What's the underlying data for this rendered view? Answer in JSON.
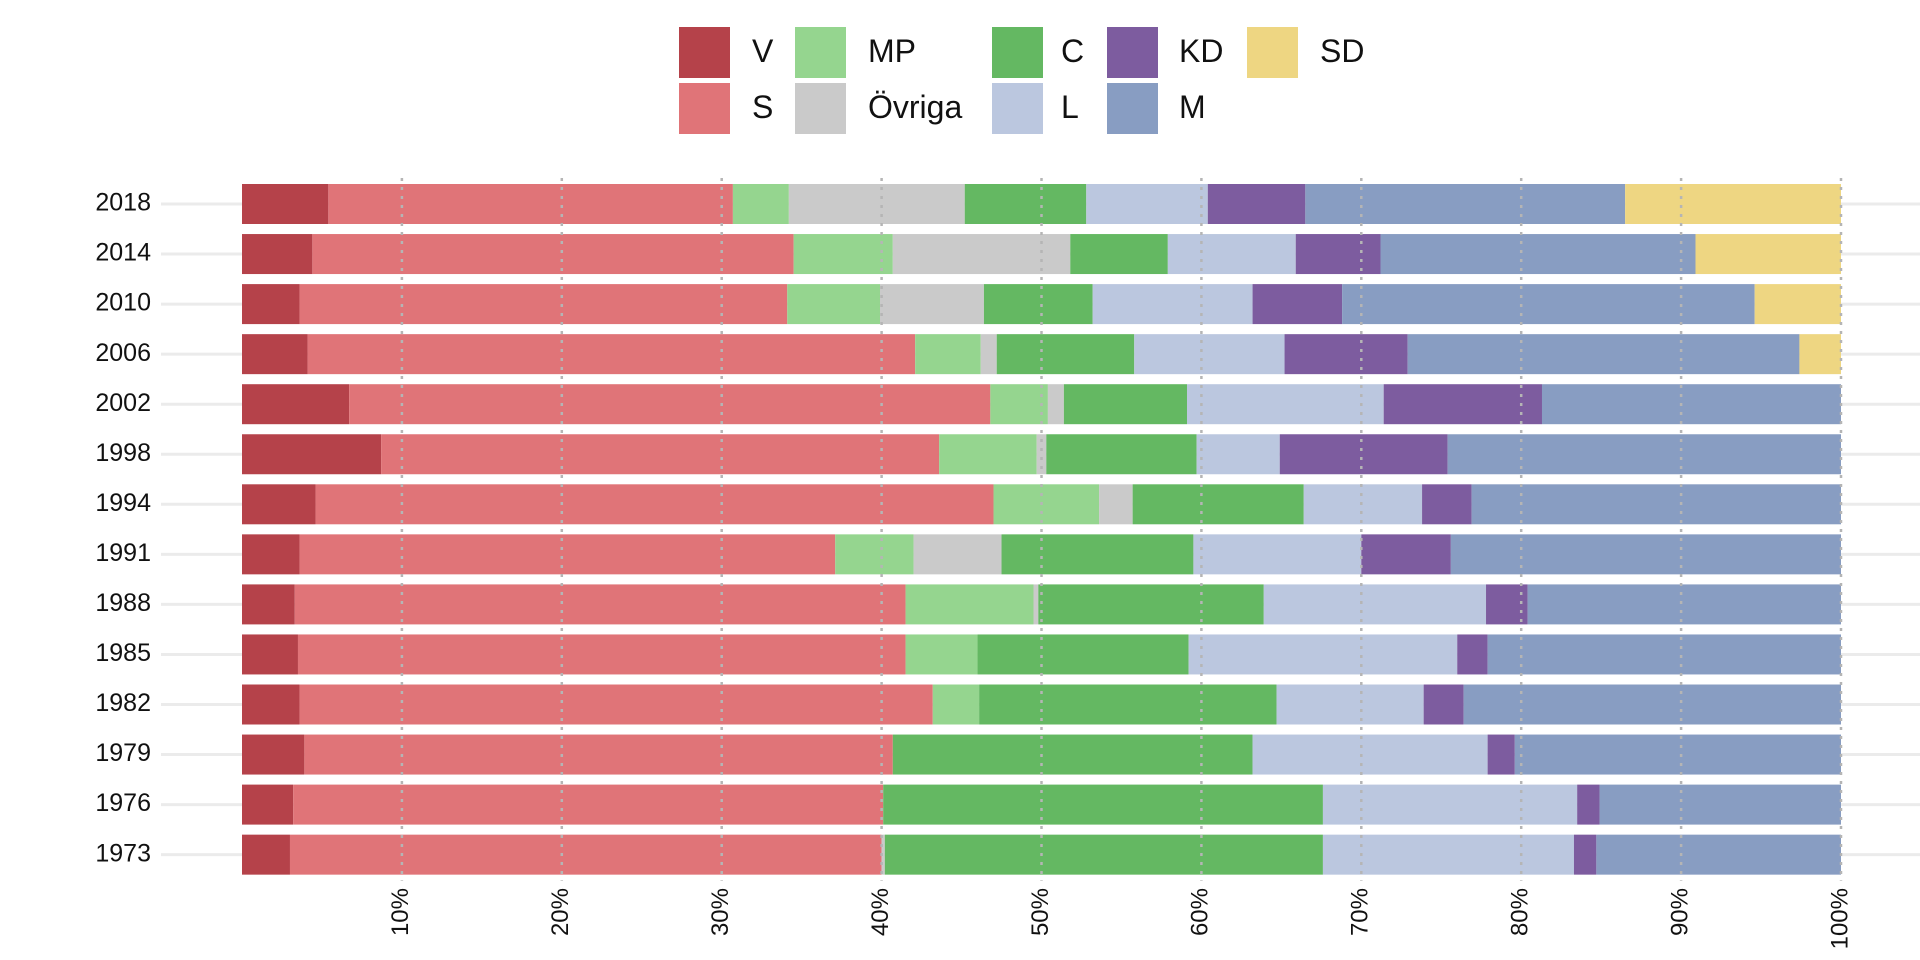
{
  "chart_data": {
    "type": "stacked-barh",
    "categories": [
      "2018",
      "2014",
      "2010",
      "2006",
      "2002",
      "1998",
      "1994",
      "1991",
      "1988",
      "1985",
      "1982",
      "1979",
      "1976",
      "1973"
    ],
    "series": [
      {
        "name": "V",
        "color": "#b5424a",
        "values": [
          5.4,
          4.4,
          3.6,
          4.1,
          6.7,
          8.7,
          4.6,
          3.6,
          3.3,
          3.5,
          3.6,
          3.9,
          3.2,
          3.0
        ]
      },
      {
        "name": "S",
        "color": "#e07478",
        "values": [
          25.3,
          30.1,
          30.5,
          38.0,
          40.1,
          34.9,
          42.4,
          33.5,
          38.2,
          38.0,
          39.6,
          36.8,
          36.9,
          37.0
        ]
      },
      {
        "name": "MP",
        "color": "#95d58f",
        "values": [
          3.5,
          6.2,
          5.8,
          4.1,
          3.6,
          6.1,
          6.6,
          4.9,
          8.0,
          4.5,
          2.9,
          0,
          0,
          0
        ]
      },
      {
        "name": "Övriga",
        "color": "#cacaca",
        "values": [
          11.0,
          11.1,
          6.5,
          1.0,
          1.0,
          0.6,
          2.1,
          5.5,
          0.3,
          0,
          0,
          0,
          0,
          0.2
        ]
      },
      {
        "name": "C",
        "color": "#64b862",
        "values": [
          7.6,
          6.1,
          6.8,
          8.6,
          7.7,
          9.4,
          10.7,
          12.0,
          14.1,
          13.2,
          18.6,
          22.5,
          27.5,
          27.4
        ]
      },
      {
        "name": "L",
        "color": "#bbc7df",
        "values": [
          7.6,
          8.0,
          10.0,
          9.4,
          12.3,
          5.2,
          7.4,
          10.5,
          13.9,
          16.8,
          9.2,
          14.7,
          15.9,
          15.7
        ]
      },
      {
        "name": "KD",
        "color": "#7d5c9f",
        "values": [
          6.1,
          5.3,
          5.6,
          7.7,
          9.9,
          10.5,
          3.1,
          5.6,
          2.6,
          1.9,
          2.5,
          1.7,
          1.4,
          1.4
        ]
      },
      {
        "name": "M",
        "color": "#889dc2",
        "values": [
          20.0,
          19.7,
          25.8,
          24.5,
          18.7,
          24.6,
          23.1,
          24.4,
          19.6,
          22.1,
          23.6,
          20.4,
          15.1,
          15.3
        ]
      },
      {
        "name": "SD",
        "color": "#eed682",
        "values": [
          13.5,
          9.1,
          5.4,
          2.6,
          0,
          0,
          0,
          0,
          0,
          0,
          0,
          0,
          0,
          0
        ]
      }
    ],
    "xlim": [
      0,
      100
    ],
    "xticks": [
      {
        "value": 10,
        "label": "10%"
      },
      {
        "value": 20,
        "label": "20%"
      },
      {
        "value": 30,
        "label": "30%"
      },
      {
        "value": 40,
        "label": "40%"
      },
      {
        "value": 50,
        "label": "50%"
      },
      {
        "value": 60,
        "label": "60%"
      },
      {
        "value": 70,
        "label": "70%"
      },
      {
        "value": 80,
        "label": "80%"
      },
      {
        "value": 90,
        "label": "90%"
      },
      {
        "value": 100,
        "label": "100%"
      }
    ],
    "grid": true
  }
}
